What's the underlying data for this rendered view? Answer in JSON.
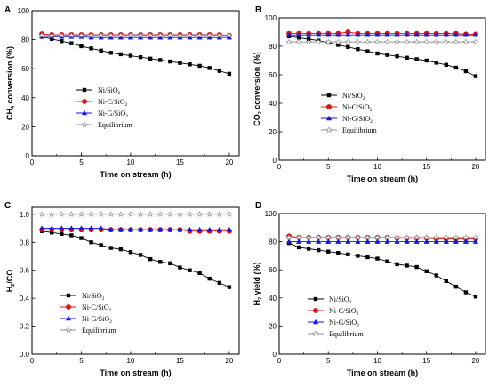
{
  "colors": {
    "ni_sio2": "#000000",
    "ni_c_sio2": "#e8130f",
    "ni_g_sio2": "#1515e6",
    "equilibrium": "#8f8f8f",
    "marker_edge_red": "#c00000"
  },
  "chart_data": [
    {
      "panel": "A",
      "type": "line",
      "xlabel": "Time on stream (h)",
      "ylabel_parts": [
        "CH",
        "4",
        " conversion (%)"
      ],
      "xlim": [
        0,
        21
      ],
      "ylim": [
        0,
        100
      ],
      "xticks": [
        0,
        5,
        10,
        15,
        20
      ],
      "yticks": [
        0,
        20,
        40,
        60,
        80,
        100
      ],
      "legend_position": "center-left",
      "legend": [
        {
          "series": "Ni/SiO2",
          "parts": [
            "Ni/SiO",
            "2",
            ""
          ]
        },
        {
          "series": "Ni-C/SiO2",
          "parts": [
            "Ni-C/SiO",
            "2",
            ""
          ]
        },
        {
          "series": "Ni-G/SiO2",
          "parts": [
            "Ni-G/SiO",
            "2",
            ""
          ]
        },
        {
          "series": "Equilibrium",
          "parts": [
            "Equilibrium",
            "",
            ""
          ]
        }
      ],
      "series": [
        {
          "name": "Ni/SiO2",
          "marker": "square",
          "x": [
            1,
            2,
            3,
            4,
            5,
            6,
            7,
            8,
            9,
            10,
            11,
            12,
            13,
            14,
            15,
            16,
            17,
            18,
            19,
            20
          ],
          "y": [
            82,
            80.5,
            79,
            77.5,
            75.5,
            74,
            72.5,
            71,
            70,
            69,
            68,
            67,
            66,
            65,
            64,
            63,
            62,
            60.5,
            58.5,
            56.5
          ]
        },
        {
          "name": "Ni-C/SiO2",
          "marker": "circle",
          "x": [
            1,
            2,
            3,
            4,
            5,
            6,
            7,
            8,
            9,
            10,
            11,
            12,
            13,
            14,
            15,
            16,
            17,
            18,
            19,
            20
          ],
          "y": [
            84,
            83.5,
            83.5,
            83.5,
            83.5,
            83.5,
            83.5,
            83.5,
            83.5,
            83.5,
            83.5,
            83.5,
            83.5,
            83.5,
            83.5,
            83.5,
            83.5,
            83.5,
            83.5,
            83
          ]
        },
        {
          "name": "Ni-G/SiO2",
          "marker": "triangle",
          "x": [
            1,
            2,
            3,
            4,
            5,
            6,
            7,
            8,
            9,
            10,
            11,
            12,
            13,
            14,
            15,
            16,
            17,
            18,
            19,
            20
          ],
          "y": [
            82.5,
            82,
            82,
            82,
            82,
            81.5,
            81.5,
            81.5,
            81.5,
            81.5,
            81.5,
            81.5,
            81.5,
            81.5,
            81.5,
            81.5,
            81.5,
            81.5,
            81.5,
            81.5
          ]
        },
        {
          "name": "Equilibrium",
          "marker": "star",
          "x": [
            1,
            2,
            3,
            4,
            5,
            6,
            7,
            8,
            9,
            10,
            11,
            12,
            13,
            14,
            15,
            16,
            17,
            18,
            19,
            20
          ],
          "y": [
            83,
            83,
            83,
            83,
            83,
            83,
            83,
            83,
            83,
            83,
            83,
            83,
            83,
            83,
            83,
            83,
            83,
            83,
            83,
            83
          ]
        }
      ]
    },
    {
      "panel": "B",
      "type": "line",
      "xlabel": "Time on stream (h)",
      "ylabel_parts": [
        "CO",
        "2",
        " conversion (%)"
      ],
      "xlim": [
        0,
        21
      ],
      "ylim": [
        0,
        100
      ],
      "xticks": [
        0,
        5,
        10,
        15,
        20
      ],
      "yticks": [
        0,
        20,
        40,
        60,
        80,
        100
      ],
      "legend_position": "center-left",
      "legend": [
        {
          "series": "Ni/SiO2",
          "parts": [
            "Ni/SiO",
            "2",
            ""
          ]
        },
        {
          "series": "Ni-C/SiO2",
          "parts": [
            "Ni-C/SiO",
            "2",
            ""
          ]
        },
        {
          "series": "Ni-G/SiO2",
          "parts": [
            "Ni-G/SiO",
            "2",
            ""
          ]
        },
        {
          "series": "Equilibrium",
          "parts": [
            "Equilibrium",
            "",
            ""
          ]
        }
      ],
      "series": [
        {
          "name": "Ni/SiO2",
          "marker": "square",
          "x": [
            1,
            2,
            3,
            4,
            5,
            6,
            7,
            8,
            9,
            10,
            11,
            12,
            13,
            14,
            15,
            16,
            17,
            18,
            19,
            20
          ],
          "y": [
            87,
            86,
            85,
            84,
            82.5,
            81,
            79.5,
            78,
            76.5,
            75,
            74,
            73,
            72,
            71,
            70,
            68.5,
            67,
            65,
            62.5,
            59
          ]
        },
        {
          "name": "Ni-C/SiO2",
          "marker": "circle",
          "x": [
            1,
            2,
            3,
            4,
            5,
            6,
            7,
            8,
            9,
            10,
            11,
            12,
            13,
            14,
            15,
            16,
            17,
            18,
            19,
            20
          ],
          "y": [
            89,
            89,
            89,
            89,
            89,
            89,
            90,
            89,
            89,
            89,
            89,
            89,
            89,
            89,
            89,
            89,
            89,
            89,
            88.5,
            88.5
          ]
        },
        {
          "name": "Ni-G/SiO2",
          "marker": "triangle",
          "x": [
            1,
            2,
            3,
            4,
            5,
            6,
            7,
            8,
            9,
            10,
            11,
            12,
            13,
            14,
            15,
            16,
            17,
            18,
            19,
            20
          ],
          "y": [
            88,
            88,
            88,
            88,
            88,
            88,
            88,
            88,
            88,
            88,
            88,
            88,
            88,
            88,
            88,
            88,
            88,
            88,
            88,
            88
          ]
        },
        {
          "name": "Equilibrium",
          "marker": "star",
          "x": [
            1,
            2,
            3,
            4,
            5,
            6,
            7,
            8,
            9,
            10,
            11,
            12,
            13,
            14,
            15,
            16,
            17,
            18,
            19,
            20
          ],
          "y": [
            83,
            83,
            83,
            83,
            83,
            83,
            83,
            83,
            83,
            83,
            83,
            83,
            83,
            83,
            83,
            83,
            83,
            83,
            83,
            83
          ]
        }
      ]
    },
    {
      "panel": "C",
      "type": "line",
      "xlabel": "Time on stream (h)",
      "ylabel_parts": [
        "H",
        "2",
        "/CO"
      ],
      "xlim": [
        0,
        21
      ],
      "ylim": [
        0,
        1.05
      ],
      "xticks": [
        0,
        5,
        10,
        15,
        20
      ],
      "yticks": [
        0.0,
        0.2,
        0.4,
        0.6,
        0.8,
        1.0
      ],
      "tick_decimals": 1,
      "legend_position": "bottom-left",
      "legend": [
        {
          "series": "Ni/SiO2",
          "parts": [
            "Ni/SiO",
            "2",
            ""
          ]
        },
        {
          "series": "Ni-C/SiO2",
          "parts": [
            "Ni-C/SiO",
            "2",
            ""
          ]
        },
        {
          "series": "Ni-G/SiO2",
          "parts": [
            "Ni-G/SiO",
            "2",
            ""
          ]
        },
        {
          "series": "Equilibrium",
          "parts": [
            "Equilibrium",
            "",
            ""
          ]
        }
      ],
      "series": [
        {
          "name": "Ni/SiO2",
          "marker": "square",
          "x": [
            1,
            2,
            3,
            4,
            5,
            6,
            7,
            8,
            9,
            10,
            11,
            12,
            13,
            14,
            15,
            16,
            17,
            18,
            19,
            20
          ],
          "y": [
            0.88,
            0.87,
            0.86,
            0.85,
            0.83,
            0.8,
            0.78,
            0.76,
            0.75,
            0.73,
            0.71,
            0.68,
            0.66,
            0.65,
            0.62,
            0.6,
            0.58,
            0.54,
            0.51,
            0.48
          ]
        },
        {
          "name": "Ni-C/SiO2",
          "marker": "circle",
          "x": [
            1,
            2,
            3,
            4,
            5,
            6,
            7,
            8,
            9,
            10,
            11,
            12,
            13,
            14,
            15,
            16,
            17,
            18,
            19,
            20
          ],
          "y": [
            0.89,
            0.89,
            0.89,
            0.89,
            0.89,
            0.89,
            0.89,
            0.89,
            0.89,
            0.89,
            0.89,
            0.89,
            0.89,
            0.89,
            0.89,
            0.88,
            0.88,
            0.88,
            0.88,
            0.88
          ]
        },
        {
          "name": "Ni-G/SiO2",
          "marker": "triangle",
          "x": [
            1,
            2,
            3,
            4,
            5,
            6,
            7,
            8,
            9,
            10,
            11,
            12,
            13,
            14,
            15,
            16,
            17,
            18,
            19,
            20
          ],
          "y": [
            0.9,
            0.9,
            0.9,
            0.9,
            0.9,
            0.9,
            0.9,
            0.89,
            0.89,
            0.89,
            0.89,
            0.89,
            0.89,
            0.89,
            0.89,
            0.89,
            0.89,
            0.89,
            0.89,
            0.89
          ]
        },
        {
          "name": "Equilibrium",
          "marker": "star",
          "x": [
            1,
            2,
            3,
            4,
            5,
            6,
            7,
            8,
            9,
            10,
            11,
            12,
            13,
            14,
            15,
            16,
            17,
            18,
            19,
            20
          ],
          "y": [
            1.0,
            1.0,
            1.0,
            1.0,
            1.0,
            1.0,
            1.0,
            1.0,
            1.0,
            1.0,
            1.0,
            1.0,
            1.0,
            1.0,
            1.0,
            1.0,
            1.0,
            1.0,
            1.0,
            1.0
          ]
        }
      ]
    },
    {
      "panel": "D",
      "type": "line",
      "xlabel": "Time on stream (h)",
      "ylabel_parts": [
        "H",
        "2",
        " yield (%)"
      ],
      "xlim": [
        0,
        21
      ],
      "ylim": [
        0,
        100
      ],
      "xticks": [
        0,
        5,
        10,
        15,
        20
      ],
      "yticks": [
        0,
        20,
        40,
        60,
        80,
        100
      ],
      "legend_position": "bottom-left",
      "legend": [
        {
          "series": "Ni/SiO2",
          "parts": [
            "Ni/SiO",
            "2",
            ""
          ]
        },
        {
          "series": "Ni-C/SiO2",
          "parts": [
            "Ni-C/SiO",
            "2",
            ""
          ]
        },
        {
          "series": "Ni-G/SiO2",
          "parts": [
            "Ni-G/SiO",
            "2",
            ""
          ]
        },
        {
          "series": "Equilibrium",
          "parts": [
            "Equilibrium",
            "",
            ""
          ]
        }
      ],
      "series": [
        {
          "name": "Ni/SiO2",
          "marker": "square",
          "x": [
            1,
            2,
            3,
            4,
            5,
            6,
            7,
            8,
            9,
            10,
            11,
            12,
            13,
            14,
            15,
            16,
            17,
            18,
            19,
            20
          ],
          "y": [
            79,
            76,
            75,
            74,
            73,
            72,
            71,
            70,
            69,
            68,
            66,
            64,
            63,
            62,
            59,
            56,
            52,
            48,
            44,
            41
          ]
        },
        {
          "name": "Ni-C/SiO2",
          "marker": "circle",
          "x": [
            1,
            2,
            3,
            4,
            5,
            6,
            7,
            8,
            9,
            10,
            11,
            12,
            13,
            14,
            15,
            16,
            17,
            18,
            19,
            20
          ],
          "y": [
            84,
            83,
            83,
            83,
            83,
            83,
            83,
            83,
            83,
            83,
            83,
            82.5,
            82.5,
            82.5,
            82.5,
            82,
            82,
            82,
            82,
            82
          ]
        },
        {
          "name": "Ni-G/SiO2",
          "marker": "triangle",
          "x": [
            1,
            2,
            3,
            4,
            5,
            6,
            7,
            8,
            9,
            10,
            11,
            12,
            13,
            14,
            15,
            16,
            17,
            18,
            19,
            20
          ],
          "y": [
            80,
            80,
            80,
            80,
            80,
            80,
            80,
            80,
            80,
            80,
            80,
            80,
            80,
            80,
            80,
            80,
            80,
            80,
            80,
            80
          ]
        },
        {
          "name": "Equilibrium",
          "marker": "star",
          "x": [
            1,
            2,
            3,
            4,
            5,
            6,
            7,
            8,
            9,
            10,
            11,
            12,
            13,
            14,
            15,
            16,
            17,
            18,
            19,
            20
          ],
          "y": [
            83,
            83,
            83,
            83,
            83,
            83,
            83,
            83,
            83,
            83,
            83,
            83,
            83,
            83,
            83,
            83,
            83,
            83,
            83,
            83
          ]
        }
      ]
    }
  ]
}
